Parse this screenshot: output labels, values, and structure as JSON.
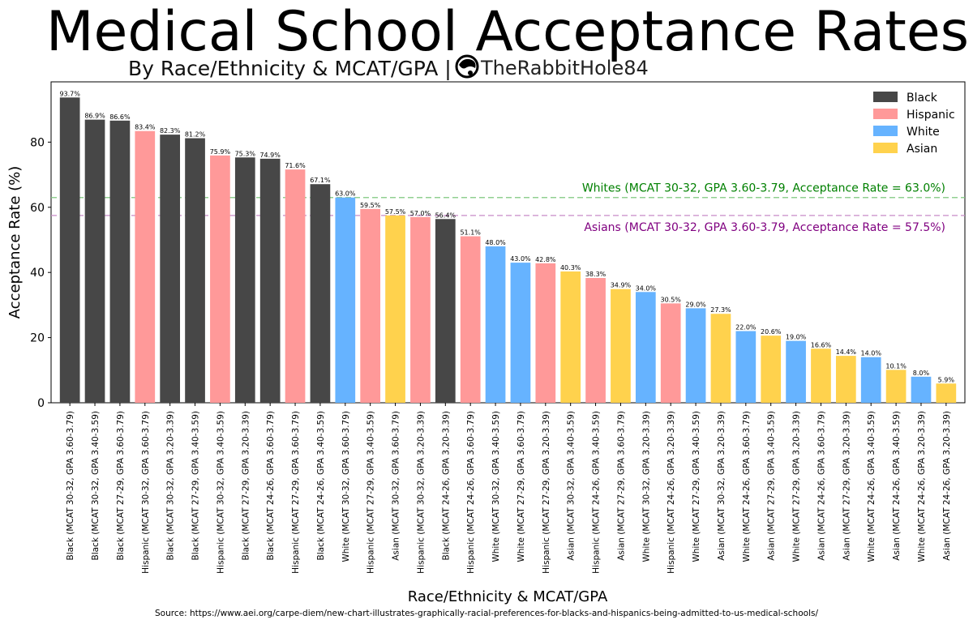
{
  "chart_data": {
    "type": "bar",
    "title": "Medical School Acceptance Rates",
    "subtitle": "By Race/Ethnicity & MCAT/GPA |",
    "brand": "TheRabbitHole84",
    "xlabel": "Race/Ethnicity & MCAT/GPA",
    "ylabel": "Acceptance Rate (%)",
    "ylim": [
      0,
      98.5
    ],
    "yticks": [
      0,
      20,
      40,
      60,
      80
    ],
    "source": "Source: https://www.aei.org/carpe-diem/new-chart-illustrates-graphically-racial-preferences-for-blacks-and-hispanics-being-admitted-to-us-medical-schools/",
    "legend_position": "top-right",
    "legend": [
      {
        "name": "Black",
        "color": "#474747"
      },
      {
        "name": "Hispanic",
        "color": "#ff9999"
      },
      {
        "name": "White",
        "color": "#66b3ff"
      },
      {
        "name": "Asian",
        "color": "#ffd24d"
      }
    ],
    "reference_lines": [
      {
        "value": 63.0,
        "color": "#7ec87e",
        "text_color": "#008000",
        "label": "Whites (MCAT 30-32, GPA 3.60-3.79, Acceptance Rate = 63.0%)"
      },
      {
        "value": 57.5,
        "color": "#c88ec8",
        "text_color": "#800080",
        "label": "Asians (MCAT 30-32, GPA 3.60-3.79, Acceptance Rate = 57.5%)"
      }
    ],
    "bars": [
      {
        "category": "Black (MCAT 30-32, GPA 3.60-3.79)",
        "group": "Black",
        "value": 93.7,
        "label": "93.7%"
      },
      {
        "category": "Black (MCAT 30-32, GPA 3.40-3.59)",
        "group": "Black",
        "value": 86.9,
        "label": "86.9%"
      },
      {
        "category": "Black (MCAT 27-29, GPA 3.60-3.79)",
        "group": "Black",
        "value": 86.6,
        "label": "86.6%"
      },
      {
        "category": "Hispanic (MCAT 30-32, GPA 3.60-3.79)",
        "group": "Hispanic",
        "value": 83.4,
        "label": "83.4%"
      },
      {
        "category": "Black (MCAT 30-32, GPA 3.20-3.39)",
        "group": "Black",
        "value": 82.3,
        "label": "82.3%"
      },
      {
        "category": "Black (MCAT 27-29, GPA 3.40-3.59)",
        "group": "Black",
        "value": 81.2,
        "label": "81.2%"
      },
      {
        "category": "Hispanic (MCAT 30-32, GPA 3.40-3.59)",
        "group": "Hispanic",
        "value": 75.9,
        "label": "75.9%"
      },
      {
        "category": "Black (MCAT 27-29, GPA 3.20-3.39)",
        "group": "Black",
        "value": 75.3,
        "label": "75.3%"
      },
      {
        "category": "Black (MCAT 24-26, GPA 3.60-3.79)",
        "group": "Black",
        "value": 74.9,
        "label": "74.9%"
      },
      {
        "category": "Hispanic (MCAT 27-29, GPA 3.60-3.79)",
        "group": "Hispanic",
        "value": 71.6,
        "label": "71.6%"
      },
      {
        "category": "Black (MCAT 24-26, GPA 3.40-3.59)",
        "group": "Black",
        "value": 67.1,
        "label": "67.1%"
      },
      {
        "category": "White (MCAT 30-32, GPA 3.60-3.79)",
        "group": "White",
        "value": 63.0,
        "label": "63.0%"
      },
      {
        "category": "Hispanic (MCAT 27-29, GPA 3.40-3.59)",
        "group": "Hispanic",
        "value": 59.5,
        "label": "59.5%"
      },
      {
        "category": "Asian (MCAT 30-32, GPA 3.60-3.79)",
        "group": "Asian",
        "value": 57.5,
        "label": "57.5%"
      },
      {
        "category": "Hispanic (MCAT 30-32, GPA 3.20-3.39)",
        "group": "Hispanic",
        "value": 57.0,
        "label": "57.0%"
      },
      {
        "category": "Black (MCAT 24-26, GPA 3.20-3.39)",
        "group": "Black",
        "value": 56.4,
        "label": "56.4%"
      },
      {
        "category": "Hispanic (MCAT 24-26, GPA 3.60-3.79)",
        "group": "Hispanic",
        "value": 51.1,
        "label": "51.1%"
      },
      {
        "category": "White (MCAT 30-32, GPA 3.40-3.59)",
        "group": "White",
        "value": 48.0,
        "label": "48.0%"
      },
      {
        "category": "White (MCAT 27-29, GPA 3.60-3.79)",
        "group": "White",
        "value": 43.0,
        "label": "43.0%"
      },
      {
        "category": "Hispanic (MCAT 27-29, GPA 3.20-3.39)",
        "group": "Hispanic",
        "value": 42.8,
        "label": "42.8%"
      },
      {
        "category": "Asian (MCAT 30-32, GPA 3.40-3.59)",
        "group": "Asian",
        "value": 40.3,
        "label": "40.3%"
      },
      {
        "category": "Hispanic (MCAT 24-26, GPA 3.40-3.59)",
        "group": "Hispanic",
        "value": 38.3,
        "label": "38.3%"
      },
      {
        "category": "Asian (MCAT 27-29, GPA 3.60-3.79)",
        "group": "Asian",
        "value": 34.9,
        "label": "34.9%"
      },
      {
        "category": "White (MCAT 30-32, GPA 3.20-3.39)",
        "group": "White",
        "value": 34.0,
        "label": "34.0%"
      },
      {
        "category": "Hispanic (MCAT 24-26, GPA 3.20-3.39)",
        "group": "Hispanic",
        "value": 30.5,
        "label": "30.5%"
      },
      {
        "category": "White (MCAT 27-29, GPA 3.40-3.59)",
        "group": "White",
        "value": 29.0,
        "label": "29.0%"
      },
      {
        "category": "Asian (MCAT 30-32, GPA 3.20-3.39)",
        "group": "Asian",
        "value": 27.3,
        "label": "27.3%"
      },
      {
        "category": "White (MCAT 24-26, GPA 3.60-3.79)",
        "group": "White",
        "value": 22.0,
        "label": "22.0%"
      },
      {
        "category": "Asian (MCAT 27-29, GPA 3.40-3.59)",
        "group": "Asian",
        "value": 20.6,
        "label": "20.6%"
      },
      {
        "category": "White (MCAT 27-29, GPA 3.20-3.39)",
        "group": "White",
        "value": 19.0,
        "label": "19.0%"
      },
      {
        "category": "Asian (MCAT 24-26, GPA 3.60-3.79)",
        "group": "Asian",
        "value": 16.6,
        "label": "16.6%"
      },
      {
        "category": "Asian (MCAT 27-29, GPA 3.20-3.39)",
        "group": "Asian",
        "value": 14.4,
        "label": "14.4%"
      },
      {
        "category": "White (MCAT 24-26, GPA 3.40-3.59)",
        "group": "White",
        "value": 14.0,
        "label": "14.0%"
      },
      {
        "category": "Asian (MCAT 24-26, GPA 3.40-3.59)",
        "group": "Asian",
        "value": 10.1,
        "label": "10.1%"
      },
      {
        "category": "White (MCAT 24-26, GPA 3.20-3.39)",
        "group": "White",
        "value": 8.0,
        "label": "8.0%"
      },
      {
        "category": "Asian (MCAT 24-26, GPA 3.20-3.39)",
        "group": "Asian",
        "value": 5.9,
        "label": "5.9%"
      }
    ]
  }
}
